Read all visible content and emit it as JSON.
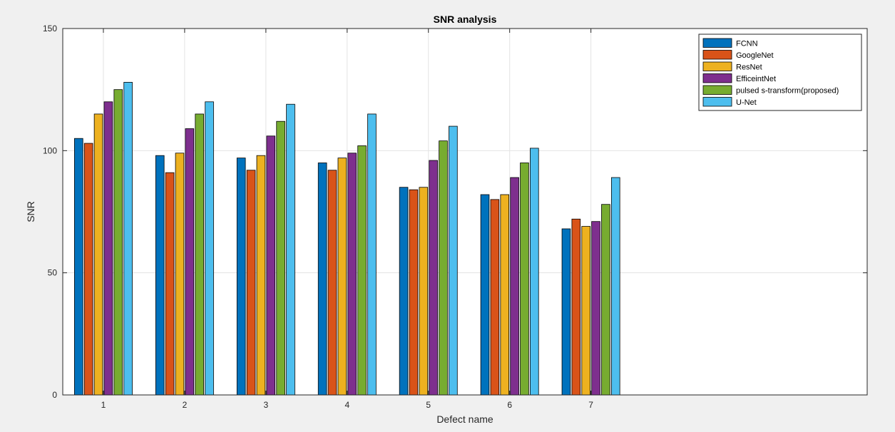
{
  "chart_data": {
    "type": "bar",
    "title": "SNR analysis",
    "xlabel": "Defect name",
    "ylabel": "SNR",
    "categories": [
      "1",
      "2",
      "3",
      "4",
      "5",
      "6",
      "7"
    ],
    "xlim": [
      0.5,
      10.4
    ],
    "ylim": [
      0,
      150
    ],
    "yticks": [
      0,
      50,
      100,
      150
    ],
    "grid": true,
    "legend_position": "top-right",
    "series": [
      {
        "name": "FCNN",
        "color": "#0072BD",
        "values": [
          105,
          98,
          97,
          95,
          85,
          82,
          68
        ]
      },
      {
        "name": "GoogleNet",
        "color": "#D95319",
        "values": [
          103,
          91,
          92,
          92,
          84,
          80,
          72
        ]
      },
      {
        "name": "ResNet",
        "color": "#EDB120",
        "values": [
          115,
          99,
          98,
          97,
          85,
          82,
          69
        ]
      },
      {
        "name": "EfficeintNet",
        "color": "#7E2F8E",
        "values": [
          120,
          109,
          106,
          99,
          96,
          89,
          71
        ]
      },
      {
        "name": "pulsed s-transform(proposed)",
        "color": "#77AC30",
        "values": [
          125,
          115,
          112,
          102,
          104,
          95,
          78
        ]
      },
      {
        "name": "U-Net",
        "color": "#4DBEEE",
        "values": [
          128,
          120,
          119,
          115,
          110,
          101,
          89
        ]
      }
    ]
  }
}
